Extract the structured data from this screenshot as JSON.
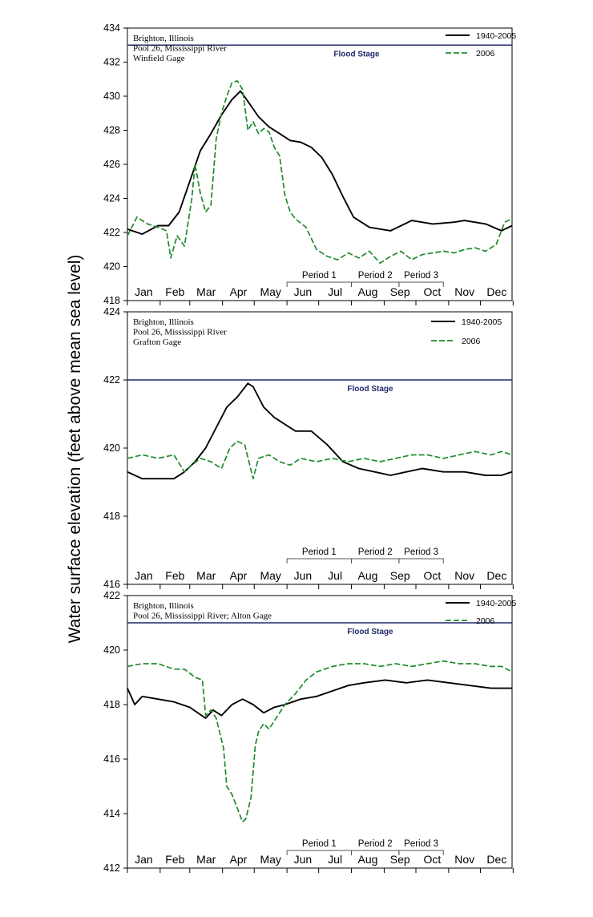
{
  "figure": {
    "ylabel": "Water surface elevation (feet above mean sea level)"
  },
  "colors": {
    "historical": "#000000",
    "year2006": "#1f8a2e",
    "flood_stage": "#1f2a6b",
    "axis": "#000000",
    "period_bracket": "#555555"
  },
  "chart_data": [
    {
      "type": "line",
      "location_lines": [
        "Brighton, Illinois",
        "Pool 26, Mississippi River",
        "Winfield Gage"
      ],
      "flood_stage": {
        "label": "Flood Stage",
        "value": 433.0
      },
      "ylim": [
        418,
        434
      ],
      "yticks": [
        418,
        420,
        422,
        424,
        426,
        428,
        430,
        432,
        434
      ],
      "x_months": [
        "Jan",
        "Feb",
        "Mar",
        "Apr",
        "May",
        "Jun",
        "Jul",
        "Aug",
        "Sep",
        "Oct",
        "Nov",
        "Dec"
      ],
      "x_units": "day of year",
      "xlim": [
        1,
        365
      ],
      "legend_position": "top-right",
      "periods": [
        {
          "label": "Period 1",
          "start": 152,
          "end": 213
        },
        {
          "label": "Period 2",
          "start": 213,
          "end": 258
        },
        {
          "label": "Period 3",
          "start": 258,
          "end": 300
        }
      ],
      "series": [
        {
          "name": "1940-2005",
          "style": "solid",
          "x": [
            1,
            15,
            30,
            40,
            50,
            60,
            70,
            80,
            90,
            100,
            108,
            115,
            125,
            135,
            145,
            155,
            165,
            175,
            185,
            195,
            205,
            215,
            230,
            250,
            270,
            290,
            310,
            320,
            340,
            355,
            365
          ],
          "y": [
            422.2,
            421.9,
            422.4,
            422.4,
            423.2,
            425.0,
            426.8,
            427.8,
            428.9,
            429.8,
            430.3,
            429.7,
            428.8,
            428.2,
            427.8,
            427.4,
            427.3,
            427.0,
            426.4,
            425.4,
            424.1,
            422.9,
            422.3,
            422.1,
            422.7,
            422.5,
            422.6,
            422.7,
            422.5,
            422.1,
            422.4
          ]
        },
        {
          "name": "2006",
          "style": "dashed",
          "x": [
            1,
            10,
            20,
            30,
            38,
            42,
            48,
            55,
            62,
            65,
            70,
            75,
            80,
            85,
            90,
            95,
            100,
            105,
            110,
            115,
            120,
            125,
            130,
            135,
            140,
            145,
            150,
            155,
            160,
            170,
            180,
            190,
            200,
            210,
            220,
            230,
            240,
            250,
            260,
            270,
            280,
            290,
            300,
            310,
            320,
            330,
            340,
            350,
            358,
            365
          ],
          "y": [
            421.8,
            422.9,
            422.5,
            422.3,
            422.1,
            420.5,
            421.8,
            421.2,
            424.0,
            426.0,
            424.3,
            423.2,
            423.6,
            427.5,
            429.0,
            430.0,
            430.8,
            430.9,
            430.4,
            428.0,
            428.5,
            427.8,
            428.1,
            427.9,
            427.0,
            426.5,
            424.2,
            423.2,
            422.8,
            422.3,
            421.0,
            420.6,
            420.4,
            420.8,
            420.5,
            420.9,
            420.2,
            420.6,
            420.9,
            420.4,
            420.7,
            420.8,
            420.9,
            420.8,
            421.0,
            421.1,
            420.9,
            421.3,
            422.6,
            422.8
          ]
        }
      ]
    },
    {
      "type": "line",
      "location_lines": [
        "Brighton, Illinois",
        "Pool 26, Mississippi River",
        "Grafton Gage"
      ],
      "flood_stage": {
        "label": "Flood Stage",
        "value": 422.0
      },
      "ylim": [
        416,
        424
      ],
      "yticks": [
        416,
        418,
        420,
        422,
        424
      ],
      "x_months": [
        "Jan",
        "Feb",
        "Mar",
        "Apr",
        "May",
        "Jun",
        "Jul",
        "Aug",
        "Sep",
        "Oct",
        "Nov",
        "Dec"
      ],
      "x_units": "day of year",
      "xlim": [
        1,
        365
      ],
      "legend_position": "top-right",
      "periods": [
        {
          "label": "Period 1",
          "start": 152,
          "end": 213
        },
        {
          "label": "Period 2",
          "start": 213,
          "end": 258
        },
        {
          "label": "Period 3",
          "start": 258,
          "end": 300
        }
      ],
      "series": [
        {
          "name": "1940-2005",
          "style": "solid",
          "x": [
            1,
            15,
            30,
            45,
            55,
            65,
            75,
            85,
            95,
            105,
            115,
            120,
            130,
            140,
            150,
            160,
            175,
            190,
            205,
            220,
            235,
            250,
            265,
            280,
            300,
            320,
            340,
            355,
            365
          ],
          "y": [
            419.3,
            419.1,
            419.1,
            419.1,
            419.3,
            419.6,
            420.0,
            420.6,
            421.2,
            421.5,
            421.9,
            421.8,
            421.2,
            420.9,
            420.7,
            420.5,
            420.5,
            420.1,
            419.6,
            419.4,
            419.3,
            419.2,
            419.3,
            419.4,
            419.3,
            419.3,
            419.2,
            419.2,
            419.3
          ]
        },
        {
          "name": "2006",
          "style": "dashed",
          "x": [
            1,
            15,
            30,
            45,
            55,
            62,
            70,
            80,
            90,
            98,
            105,
            112,
            120,
            125,
            135,
            145,
            155,
            165,
            180,
            195,
            210,
            225,
            240,
            255,
            270,
            285,
            300,
            315,
            330,
            345,
            355,
            365
          ],
          "y": [
            419.7,
            419.8,
            419.7,
            419.8,
            419.3,
            419.5,
            419.7,
            419.6,
            419.4,
            420.0,
            420.2,
            420.1,
            419.1,
            419.7,
            419.8,
            419.6,
            419.5,
            419.7,
            419.6,
            419.7,
            419.6,
            419.7,
            419.6,
            419.7,
            419.8,
            419.8,
            419.7,
            419.8,
            419.9,
            419.8,
            419.9,
            419.8
          ]
        }
      ]
    },
    {
      "type": "line",
      "location_lines": [
        "Brighton, Illinois",
        "Pool 26, Mississippi River; Alton Gage"
      ],
      "flood_stage": {
        "label": "Flood Stage",
        "value": 421.0
      },
      "ylim": [
        412,
        422
      ],
      "yticks": [
        412,
        414,
        416,
        418,
        420,
        422
      ],
      "x_months": [
        "Jan",
        "Feb",
        "Mar",
        "Apr",
        "May",
        "Jun",
        "Jul",
        "Aug",
        "Sep",
        "Oct",
        "Nov",
        "Dec"
      ],
      "x_units": "day of year",
      "xlim": [
        1,
        365
      ],
      "legend_position": "top-right",
      "periods": [
        {
          "label": "Period 1",
          "start": 152,
          "end": 213
        },
        {
          "label": "Period 2",
          "start": 213,
          "end": 258
        },
        {
          "label": "Period 3",
          "start": 258,
          "end": 300
        }
      ],
      "series": [
        {
          "name": "1940-2005",
          "style": "solid",
          "x": [
            1,
            8,
            15,
            30,
            45,
            60,
            75,
            82,
            90,
            100,
            110,
            120,
            130,
            140,
            150,
            165,
            180,
            195,
            210,
            225,
            245,
            265,
            285,
            305,
            325,
            345,
            355,
            365
          ],
          "y": [
            418.6,
            418.0,
            418.3,
            418.2,
            418.1,
            417.9,
            417.5,
            417.8,
            417.6,
            418.0,
            418.2,
            418.0,
            417.7,
            417.9,
            418.0,
            418.2,
            418.3,
            418.5,
            418.7,
            418.8,
            418.9,
            418.8,
            418.9,
            418.8,
            418.7,
            418.6,
            418.6,
            418.6
          ]
        },
        {
          "name": "2006",
          "style": "dashed",
          "x": [
            1,
            15,
            30,
            45,
            55,
            65,
            72,
            75,
            80,
            85,
            92,
            95,
            100,
            105,
            110,
            113,
            118,
            122,
            125,
            130,
            135,
            140,
            150,
            160,
            170,
            180,
            195,
            210,
            225,
            240,
            255,
            270,
            285,
            300,
            315,
            330,
            345,
            355,
            365
          ],
          "y": [
            419.4,
            419.5,
            419.5,
            419.3,
            419.3,
            419.0,
            418.9,
            417.6,
            417.8,
            417.5,
            416.4,
            415.0,
            414.7,
            414.2,
            413.7,
            413.8,
            414.6,
            416.5,
            417.0,
            417.3,
            417.1,
            417.4,
            418.0,
            418.4,
            418.9,
            419.2,
            419.4,
            419.5,
            419.5,
            419.4,
            419.5,
            419.4,
            419.5,
            419.6,
            419.5,
            419.5,
            419.4,
            419.4,
            419.2
          ]
        }
      ]
    }
  ]
}
